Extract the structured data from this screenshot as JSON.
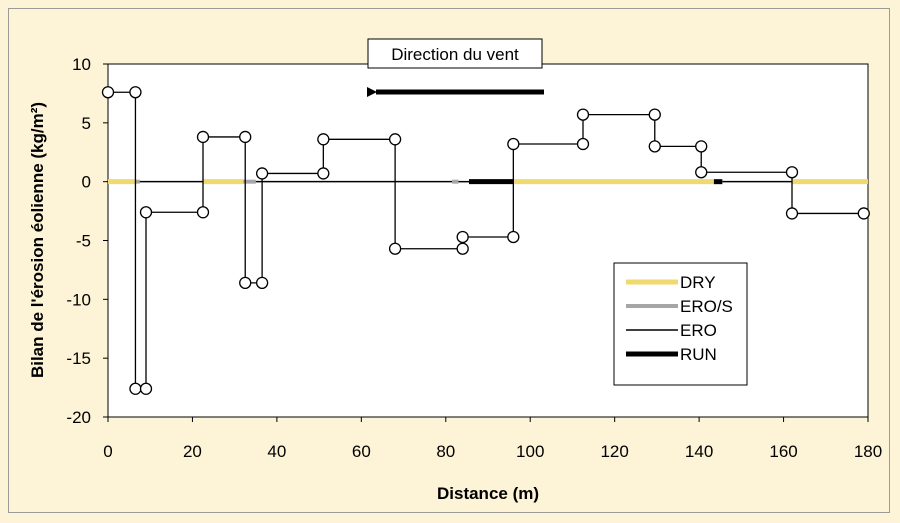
{
  "chart_data": {
    "type": "line",
    "title": "",
    "xlabel": "Distance (m)",
    "ylabel": "Bilan de l'érosion éolienne (kg/m²)",
    "xlim": [
      0,
      180
    ],
    "ylim": [
      -20,
      10
    ],
    "xticks": [
      "0",
      "20",
      "40",
      "60",
      "80",
      "100",
      "120",
      "140",
      "160",
      "180"
    ],
    "yticks": [
      "10",
      "5",
      "0",
      "-5",
      "-10",
      "-15",
      "-20"
    ],
    "grid": false,
    "legend_position": "bottom-right",
    "annotation": "Direction du vent",
    "annotation_arrow": "pointing left",
    "series": [
      {
        "name": "ERO",
        "style": "step line with open circle markers",
        "x": [
          0,
          6.5,
          6.5,
          9,
          9,
          22.5,
          22.5,
          32.5,
          32.5,
          36.5,
          36.5,
          51,
          51,
          68,
          68,
          84,
          84,
          96,
          96,
          112.5,
          112.5,
          129.5,
          129.5,
          140.5,
          140.5,
          162,
          162,
          179
        ],
        "y": [
          7.6,
          7.6,
          -17.6,
          -17.6,
          -2.6,
          -2.6,
          3.8,
          3.8,
          -8.6,
          -8.6,
          0.7,
          0.7,
          3.6,
          3.6,
          -5.7,
          -5.7,
          -4.7,
          -4.7,
          3.2,
          3.2,
          5.7,
          5.7,
          3.0,
          3.0,
          0.8,
          0.8,
          -2.7,
          -2.7
        ]
      }
    ],
    "zero_line_segments": [
      {
        "name": "DRY",
        "color": "#f0d96e",
        "x": [
          0,
          6.5
        ]
      },
      {
        "name": "ERO/S",
        "color": "#a6a6a6",
        "x": [
          6.5,
          7.5
        ]
      },
      {
        "name": "ERO",
        "color": "#000000",
        "x": [
          7.5,
          22.5
        ]
      },
      {
        "name": "DRY",
        "color": "#f0d96e",
        "x": [
          22.5,
          32
        ]
      },
      {
        "name": "ERO/S",
        "color": "#a6a6a6",
        "x": [
          32,
          35
        ]
      },
      {
        "name": "ERO",
        "color": "#000000",
        "x": [
          35,
          81.5
        ]
      },
      {
        "name": "ERO/S",
        "color": "#a6a6a6",
        "x": [
          81.5,
          83
        ]
      },
      {
        "name": "ERO",
        "color": "#000000",
        "x": [
          83,
          85.5
        ]
      },
      {
        "name": "RUN",
        "color": "#000000",
        "x": [
          85.5,
          96
        ]
      },
      {
        "name": "DRY",
        "color": "#f0d96e",
        "x": [
          96,
          143.5
        ]
      },
      {
        "name": "RUN",
        "color": "#000000",
        "x": [
          143.5,
          145.5
        ]
      },
      {
        "name": "ERO",
        "color": "#000000",
        "x": [
          145.5,
          162
        ]
      },
      {
        "name": "DRY",
        "color": "#f0d96e",
        "x": [
          162,
          180
        ]
      }
    ],
    "legend": [
      {
        "label": "DRY",
        "color": "#f0d96e",
        "style": "thick"
      },
      {
        "label": "ERO/S",
        "color": "#a6a6a6",
        "style": "medium"
      },
      {
        "label": "ERO",
        "color": "#000000",
        "style": "thin"
      },
      {
        "label": "RUN",
        "color": "#000000",
        "style": "thick"
      }
    ]
  }
}
